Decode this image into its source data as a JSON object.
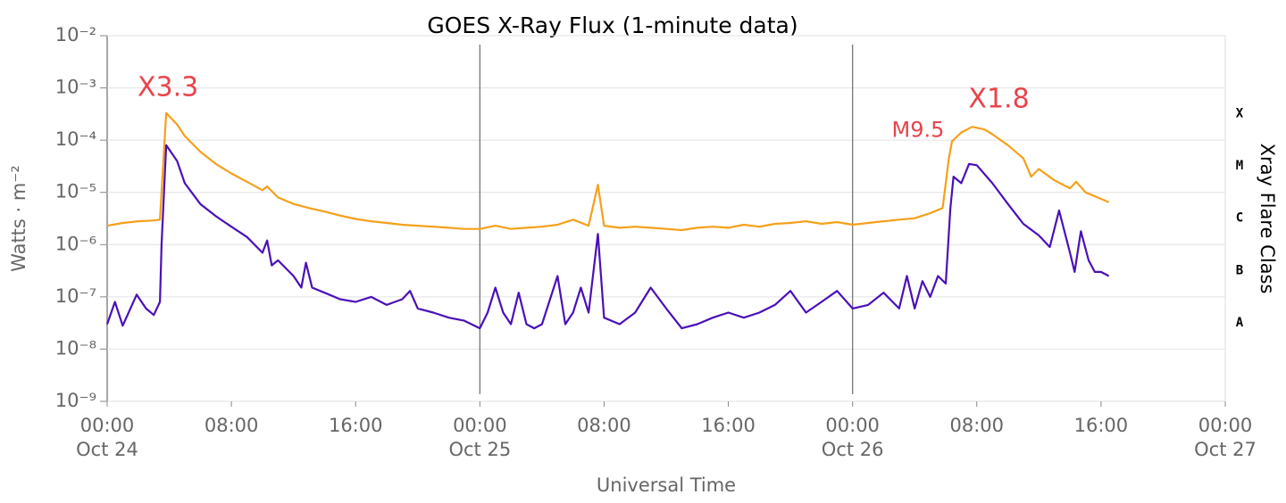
{
  "chart_data": {
    "type": "line",
    "title": "GOES X-Ray Flux (1-minute data)",
    "x_label": "Universal Time",
    "y_label": "Watts · m⁻²",
    "y2_label": "Xray Flare Class",
    "log_y": true,
    "grid": true,
    "xlim": [
      0,
      72
    ],
    "xticks": [
      {
        "value": 0,
        "label": "00:00",
        "date": "Oct 24"
      },
      {
        "value": 8,
        "label": "08:00"
      },
      {
        "value": 16,
        "label": "16:00"
      },
      {
        "value": 24,
        "label": "00:00",
        "date": "Oct 25"
      },
      {
        "value": 32,
        "label": "08:00"
      },
      {
        "value": 40,
        "label": "16:00"
      },
      {
        "value": 48,
        "label": "00:00",
        "date": "Oct 26"
      },
      {
        "value": 56,
        "label": "08:00"
      },
      {
        "value": 64,
        "label": "16:00"
      },
      {
        "value": 72,
        "label": "00:00",
        "date": "Oct 27"
      }
    ],
    "ylim": [
      1e-09,
      0.01
    ],
    "yticks": [
      {
        "value": 1e-09,
        "label": "10⁻⁹"
      },
      {
        "value": 1e-08,
        "label": "10⁻⁸"
      },
      {
        "value": 1e-07,
        "label": "10⁻⁷"
      },
      {
        "value": 1e-06,
        "label": "10⁻⁶"
      },
      {
        "value": 1e-05,
        "label": "10⁻⁵"
      },
      {
        "value": 0.0001,
        "label": "10⁻⁴"
      },
      {
        "value": 0.001,
        "label": "10⁻³"
      },
      {
        "value": 0.01,
        "label": "10⁻²"
      }
    ],
    "class_labels": [
      {
        "value": 3.2e-08,
        "label": "A"
      },
      {
        "value": 3.2e-07,
        "label": "B"
      },
      {
        "value": 3.2e-06,
        "label": "C"
      },
      {
        "value": 3.2e-05,
        "label": "M"
      },
      {
        "value": 0.00032,
        "label": "X"
      }
    ],
    "annotations": [
      {
        "text": "X3.3",
        "x": 3.8,
        "y": 0.00033
      },
      {
        "text": "M9.5",
        "x": 54.4,
        "y": 9.5e-05
      },
      {
        "text": "X1.8",
        "x": 55.7,
        "y": 0.00018
      }
    ],
    "series": [
      {
        "color": "#f5a01a",
        "x": [
          0,
          1,
          2,
          3,
          3.4,
          3.8,
          4.5,
          5,
          6,
          7,
          8,
          9,
          10,
          10.3,
          11,
          12,
          13,
          14,
          15,
          16,
          17,
          18,
          19,
          20,
          21,
          22,
          23,
          24,
          25,
          26,
          27,
          28,
          29,
          30,
          31,
          31.6,
          32,
          33,
          34,
          35,
          36,
          37,
          38,
          39,
          40,
          41,
          42,
          43,
          44,
          45,
          46,
          47,
          48,
          49,
          50,
          51,
          52,
          53,
          53.8,
          54.2,
          54.4,
          55,
          55.7,
          56.5,
          57,
          58,
          59,
          59.5,
          60,
          61,
          62,
          62.4,
          63,
          64,
          64.5
        ],
        "values": [
          2.3e-06,
          2.6e-06,
          2.8e-06,
          2.9e-06,
          3e-06,
          0.00033,
          0.0002,
          0.00012,
          6e-05,
          3.5e-05,
          2.3e-05,
          1.6e-05,
          1.1e-05,
          1.3e-05,
          8e-06,
          6e-06,
          5e-06,
          4.3e-06,
          3.6e-06,
          3.1e-06,
          2.8e-06,
          2.6e-06,
          2.4e-06,
          2.3e-06,
          2.2e-06,
          2.1e-06,
          2e-06,
          2e-06,
          2.3e-06,
          2e-06,
          2.1e-06,
          2.2e-06,
          2.4e-06,
          3e-06,
          2.3e-06,
          1.4e-05,
          2.3e-06,
          2.1e-06,
          2.2e-06,
          2.1e-06,
          2e-06,
          1.9e-06,
          2.1e-06,
          2.2e-06,
          2.1e-06,
          2.4e-06,
          2.2e-06,
          2.5e-06,
          2.6e-06,
          2.8e-06,
          2.5e-06,
          2.7e-06,
          2.4e-06,
          2.6e-06,
          2.8e-06,
          3e-06,
          3.2e-06,
          4e-06,
          5e-06,
          4.5e-05,
          9.5e-05,
          0.00014,
          0.00018,
          0.00016,
          0.00013,
          8e-05,
          4.5e-05,
          2e-05,
          2.8e-05,
          1.7e-05,
          1.2e-05,
          1.6e-05,
          1e-05,
          7.5e-06,
          6.5e-06
        ]
      },
      {
        "color": "#4a10b8",
        "x": [
          0,
          0.5,
          1,
          1.9,
          2.5,
          3,
          3.4,
          3.5,
          3.8,
          4.5,
          5,
          6,
          7,
          8,
          9,
          10,
          10.3,
          10.6,
          11,
          12,
          12.5,
          12.8,
          13.2,
          14,
          15,
          16,
          17,
          18,
          19,
          19.5,
          20,
          21,
          22,
          23,
          24,
          24.5,
          25,
          25.5,
          26,
          26.5,
          27,
          27.5,
          28,
          29,
          29.5,
          30,
          30.5,
          31,
          31.6,
          32,
          33,
          34,
          35,
          36,
          37,
          38,
          39,
          40,
          41,
          42,
          43,
          44,
          45,
          46,
          47,
          48,
          49,
          50,
          51,
          51.5,
          52,
          52.5,
          53,
          53.5,
          54,
          54.3,
          54.5,
          55,
          55.5,
          56,
          57,
          58,
          59,
          60,
          60.7,
          61.3,
          62,
          62.3,
          62.7,
          63.2,
          63.6,
          64,
          64.5
        ],
        "values": [
          3e-08,
          8e-08,
          2.8e-08,
          1.1e-07,
          6e-08,
          4.5e-08,
          8e-08,
          1e-06,
          8e-05,
          4e-05,
          1.5e-05,
          6e-06,
          3.5e-06,
          2.2e-06,
          1.4e-06,
          7e-07,
          1.2e-06,
          4e-07,
          5e-07,
          2.5e-07,
          1.5e-07,
          4.5e-07,
          1.5e-07,
          1.2e-07,
          9e-08,
          8e-08,
          1e-07,
          7e-08,
          9e-08,
          1.3e-07,
          6e-08,
          5e-08,
          4e-08,
          3.5e-08,
          2.5e-08,
          5e-08,
          1.5e-07,
          5e-08,
          3e-08,
          1.2e-07,
          3e-08,
          2.5e-08,
          3e-08,
          2.5e-07,
          3e-08,
          5e-08,
          1.5e-07,
          5e-08,
          1.6e-06,
          4e-08,
          3e-08,
          5e-08,
          1.5e-07,
          6e-08,
          2.5e-08,
          3e-08,
          4e-08,
          5e-08,
          4e-08,
          5e-08,
          7e-08,
          1.3e-07,
          5e-08,
          8e-08,
          1.3e-07,
          6e-08,
          7e-08,
          1.2e-07,
          6e-08,
          2.5e-07,
          6e-08,
          2e-07,
          1e-07,
          2.5e-07,
          1.8e-07,
          5e-06,
          2e-05,
          1.5e-05,
          3.5e-05,
          3.3e-05,
          1.5e-05,
          6e-06,
          2.5e-06,
          1.5e-06,
          9e-07,
          4.5e-06,
          7e-07,
          3e-07,
          1.8e-06,
          5e-07,
          3e-07,
          3e-07,
          2.5e-07
        ]
      }
    ]
  }
}
